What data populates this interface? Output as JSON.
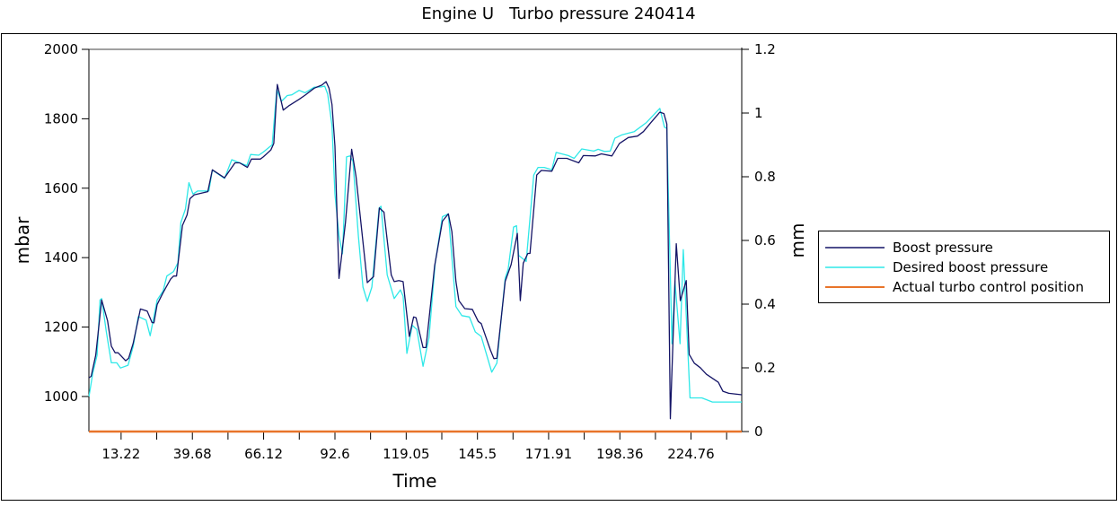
{
  "chart_data": {
    "type": "line",
    "title": "Engine U   Turbo pressure 240414",
    "xlabel": "Time",
    "ylabel": "mbar",
    "y2label": "mm",
    "xlim": [
      1.27,
      243.6
    ],
    "ylim": [
      899,
      2000
    ],
    "y2lim": [
      0,
      1.2
    ],
    "x_tick_labels": [
      "13.22",
      "39.68",
      "66.12",
      "92.6",
      "119.05",
      "145.5",
      "171.91",
      "198.36",
      "224.76"
    ],
    "x_tick_values": [
      13.22,
      39.68,
      66.12,
      92.6,
      119.05,
      145.5,
      171.91,
      198.36,
      224.76
    ],
    "x_minor_ticks": [
      26.45,
      52.9,
      79.36,
      105.82,
      132.27,
      158.7,
      185.13,
      211.56,
      237.99
    ],
    "y_ticks": [
      "1000",
      "1200",
      "1400",
      "1600",
      "1800",
      "2000"
    ],
    "y2_ticks": [
      "0",
      "0.2",
      "0.4",
      "0.6",
      "0.8",
      "1",
      "1.2"
    ],
    "grid": false,
    "legend_position": "right",
    "series": [
      {
        "name": "Boost pressure",
        "axis": "left",
        "color": "#141466",
        "points": [
          [
            1.3,
            1054
          ],
          [
            2.1,
            1058
          ],
          [
            3.8,
            1119
          ],
          [
            6.0,
            1278
          ],
          [
            8.2,
            1218
          ],
          [
            9.6,
            1145
          ],
          [
            11,
            1126
          ],
          [
            12.1,
            1126
          ],
          [
            14.9,
            1103
          ],
          [
            16,
            1110
          ],
          [
            17.7,
            1153
          ],
          [
            20.4,
            1252
          ],
          [
            22.9,
            1246
          ],
          [
            24.7,
            1213
          ],
          [
            25.4,
            1212
          ],
          [
            26.6,
            1265
          ],
          [
            28.8,
            1299
          ],
          [
            31.6,
            1338
          ],
          [
            32.7,
            1347
          ],
          [
            33.8,
            1347
          ],
          [
            36,
            1493
          ],
          [
            37.7,
            1523
          ],
          [
            38.8,
            1570
          ],
          [
            40.4,
            1581
          ],
          [
            45.4,
            1590
          ],
          [
            47.1,
            1653
          ],
          [
            51.6,
            1630
          ],
          [
            55.5,
            1673
          ],
          [
            57.2,
            1673
          ],
          [
            60.1,
            1660
          ],
          [
            61.6,
            1684
          ],
          [
            64.9,
            1684
          ],
          [
            66,
            1690
          ],
          [
            68.8,
            1710
          ],
          [
            69.9,
            1729
          ],
          [
            71.2,
            1899
          ],
          [
            73.4,
            1825
          ],
          [
            75.4,
            1837
          ],
          [
            79.3,
            1856
          ],
          [
            81.5,
            1868
          ],
          [
            84.9,
            1888
          ],
          [
            87.7,
            1897
          ],
          [
            89.3,
            1907
          ],
          [
            90.4,
            1888
          ],
          [
            91.5,
            1841
          ],
          [
            92.6,
            1721
          ],
          [
            94.1,
            1340
          ],
          [
            96.5,
            1501
          ],
          [
            98.8,
            1712
          ],
          [
            100.4,
            1635
          ],
          [
            104.6,
            1328
          ],
          [
            106.9,
            1345
          ],
          [
            109.1,
            1543
          ],
          [
            110.8,
            1531
          ],
          [
            113.5,
            1350
          ],
          [
            114.6,
            1331
          ],
          [
            116.3,
            1334
          ],
          [
            117.9,
            1331
          ],
          [
            120.2,
            1173
          ],
          [
            121.8,
            1229
          ],
          [
            122.7,
            1227
          ],
          [
            125.3,
            1141
          ],
          [
            126.4,
            1141
          ],
          [
            129.6,
            1376
          ],
          [
            132.5,
            1505
          ],
          [
            134.7,
            1526
          ],
          [
            136.0,
            1475
          ],
          [
            137.5,
            1332
          ],
          [
            138.6,
            1276
          ],
          [
            140.8,
            1253
          ],
          [
            143.6,
            1251
          ],
          [
            145.8,
            1216
          ],
          [
            146.9,
            1210
          ],
          [
            150.3,
            1134
          ],
          [
            151.6,
            1109
          ],
          [
            152.7,
            1110
          ],
          [
            155.8,
            1332
          ],
          [
            158,
            1380
          ],
          [
            160.3,
            1470
          ],
          [
            161.4,
            1276
          ],
          [
            162.5,
            1384
          ],
          [
            164.2,
            1412
          ],
          [
            165,
            1412
          ],
          [
            167.5,
            1638
          ],
          [
            169.2,
            1651
          ],
          [
            173.1,
            1649
          ],
          [
            175.3,
            1686
          ],
          [
            178.7,
            1686
          ],
          [
            183.1,
            1673
          ],
          [
            184.8,
            1694
          ],
          [
            189.3,
            1693
          ],
          [
            191.5,
            1699
          ],
          [
            195.4,
            1693
          ],
          [
            198.2,
            1729
          ],
          [
            201.5,
            1746
          ],
          [
            204.9,
            1750
          ],
          [
            207.1,
            1763
          ],
          [
            209.9,
            1789
          ],
          [
            213.2,
            1819
          ],
          [
            214.7,
            1815
          ],
          [
            215.8,
            1785
          ],
          [
            217.1,
            936
          ],
          [
            219.3,
            1440
          ],
          [
            220.8,
            1276
          ],
          [
            223,
            1334
          ],
          [
            224.1,
            1121
          ],
          [
            226,
            1096
          ],
          [
            228.2,
            1083
          ],
          [
            230.5,
            1064
          ],
          [
            234.9,
            1041
          ],
          [
            236.6,
            1015
          ],
          [
            238.8,
            1009
          ],
          [
            243.6,
            1005
          ]
        ]
      },
      {
        "name": "Desired boost pressure",
        "axis": "left",
        "color": "#2ee8e8",
        "points": [
          [
            1.3,
            1000
          ],
          [
            2.7,
            1067
          ],
          [
            4.3,
            1119
          ],
          [
            5.4,
            1278
          ],
          [
            6,
            1282
          ],
          [
            7.7,
            1188
          ],
          [
            9.6,
            1097
          ],
          [
            11.6,
            1097
          ],
          [
            13,
            1082
          ],
          [
            15.8,
            1090
          ],
          [
            17.7,
            1144
          ],
          [
            19.6,
            1230
          ],
          [
            22.5,
            1220
          ],
          [
            24,
            1175
          ],
          [
            25.1,
            1218
          ],
          [
            26.6,
            1278
          ],
          [
            28.8,
            1304
          ],
          [
            30.2,
            1347
          ],
          [
            32.7,
            1360
          ],
          [
            34.3,
            1385
          ],
          [
            35.4,
            1501
          ],
          [
            37.1,
            1540
          ],
          [
            38.4,
            1616
          ],
          [
            39.9,
            1583
          ],
          [
            41.6,
            1592
          ],
          [
            45.8,
            1592
          ],
          [
            47.1,
            1652
          ],
          [
            51.6,
            1628
          ],
          [
            54.3,
            1682
          ],
          [
            57.2,
            1673
          ],
          [
            59.9,
            1665
          ],
          [
            61.3,
            1697
          ],
          [
            64.3,
            1695
          ],
          [
            66,
            1704
          ],
          [
            69.3,
            1725
          ],
          [
            71,
            1884
          ],
          [
            72.7,
            1850
          ],
          [
            74.9,
            1867
          ],
          [
            76.6,
            1869
          ],
          [
            79.3,
            1882
          ],
          [
            81.5,
            1875
          ],
          [
            84.9,
            1891
          ],
          [
            87.7,
            1892
          ],
          [
            88.8,
            1894
          ],
          [
            89.9,
            1871
          ],
          [
            91.5,
            1781
          ],
          [
            92.6,
            1583
          ],
          [
            94.1,
            1463
          ],
          [
            95.4,
            1411
          ],
          [
            96.9,
            1690
          ],
          [
            98.2,
            1693
          ],
          [
            99.3,
            1677
          ],
          [
            101.3,
            1462
          ],
          [
            103,
            1315
          ],
          [
            104.6,
            1274
          ],
          [
            106.3,
            1315
          ],
          [
            109,
            1543
          ],
          [
            109.7,
            1548
          ],
          [
            112,
            1350
          ],
          [
            114.6,
            1282
          ],
          [
            116.9,
            1307
          ],
          [
            117.9,
            1289
          ],
          [
            119.3,
            1124
          ],
          [
            121.3,
            1205
          ],
          [
            123,
            1193
          ],
          [
            125.3,
            1087
          ],
          [
            127.5,
            1169
          ],
          [
            129.8,
            1384
          ],
          [
            132.5,
            1518
          ],
          [
            134.7,
            1526
          ],
          [
            137.5,
            1259
          ],
          [
            139.7,
            1233
          ],
          [
            142.5,
            1229
          ],
          [
            144.7,
            1186
          ],
          [
            146.9,
            1173
          ],
          [
            150.8,
            1070
          ],
          [
            152.7,
            1096
          ],
          [
            155.8,
            1341
          ],
          [
            156.9,
            1367
          ],
          [
            158.9,
            1488
          ],
          [
            160,
            1492
          ],
          [
            160.8,
            1406
          ],
          [
            163.6,
            1389
          ],
          [
            166.4,
            1638
          ],
          [
            168,
            1660
          ],
          [
            170.3,
            1660
          ],
          [
            173.1,
            1653
          ],
          [
            174.7,
            1703
          ],
          [
            179.2,
            1694
          ],
          [
            181.4,
            1686
          ],
          [
            184.2,
            1713
          ],
          [
            188.7,
            1707
          ],
          [
            190.3,
            1712
          ],
          [
            192.6,
            1706
          ],
          [
            194.8,
            1707
          ],
          [
            196.5,
            1744
          ],
          [
            199.2,
            1754
          ],
          [
            203.7,
            1763
          ],
          [
            208.2,
            1789
          ],
          [
            213.2,
            1830
          ],
          [
            214.9,
            1776
          ],
          [
            215.8,
            1772
          ],
          [
            217.7,
            1152
          ],
          [
            218.8,
            1332
          ],
          [
            220.7,
            1152
          ],
          [
            221.9,
            1423
          ],
          [
            224.4,
            996
          ],
          [
            228.8,
            996
          ],
          [
            232.7,
            984
          ],
          [
            243.6,
            984
          ]
        ]
      },
      {
        "name": "Actual turbo control position",
        "axis": "right",
        "color": "#e8742a",
        "points": [
          [
            1.27,
            0
          ],
          [
            243.6,
            0
          ]
        ]
      }
    ]
  }
}
